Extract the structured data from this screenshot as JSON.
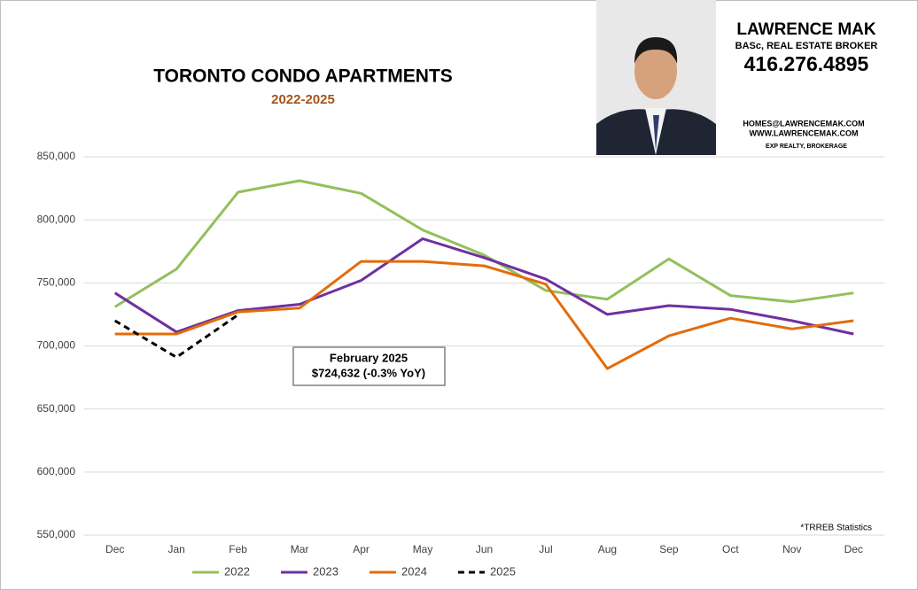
{
  "chart_data": {
    "type": "line",
    "title": "TORONTO CONDO APARTMENTS",
    "subtitle": "2022-2025",
    "categories": [
      "Dec",
      "Jan",
      "Feb",
      "Mar",
      "Apr",
      "May",
      "Jun",
      "Jul",
      "Aug",
      "Sep",
      "Oct",
      "Nov",
      "Dec"
    ],
    "series": [
      {
        "name": "2022",
        "color": "#92c05c",
        "dash": false,
        "values": [
          731000,
          761000,
          822000,
          831000,
          821000,
          792000,
          772000,
          744000,
          737000,
          769000,
          740000,
          735000,
          742000
        ]
      },
      {
        "name": "2023",
        "color": "#7030a0",
        "dash": false,
        "values": [
          742000,
          711000,
          728000,
          733000,
          752000,
          785000,
          770000,
          753000,
          725000,
          732000,
          729000,
          720000,
          709500
        ]
      },
      {
        "name": "2024",
        "color": "#e36c0a",
        "dash": false,
        "values": [
          709500,
          709500,
          727000,
          730000,
          767000,
          767000,
          763500,
          749000,
          682000,
          708000,
          722000,
          713500,
          720000
        ]
      },
      {
        "name": "2025",
        "color": "#000000",
        "dash": true,
        "values": [
          720000,
          691000,
          724632,
          null,
          null,
          null,
          null,
          null,
          null,
          null,
          null,
          null,
          null
        ]
      }
    ],
    "ylim": [
      550000,
      850000
    ],
    "yticks": [
      {
        "value": 550000,
        "label": "550,000"
      },
      {
        "value": 600000,
        "label": "600,000"
      },
      {
        "value": 650000,
        "label": "650,000"
      },
      {
        "value": 700000,
        "label": "700,000"
      },
      {
        "value": 750000,
        "label": "750,000"
      },
      {
        "value": 800000,
        "label": "800,000"
      },
      {
        "value": 850000,
        "label": "850,000"
      }
    ],
    "grid": true,
    "legend": "bottom",
    "annotation": {
      "title": "February 2025",
      "text": "$724,632 (-0.3% YoY)"
    },
    "footnote": "*TRREB Statistics"
  },
  "agent": {
    "name": "LAWRENCE MAK",
    "credentials": "BASc, REAL ESTATE BROKER",
    "phone": "416.276.4895",
    "email": "HOMES@LAWRENCEMAK.COM",
    "website": "WWW.LAWRENCEMAK.COM",
    "brokerage": "EXP REALTY, BROKERAGE"
  }
}
